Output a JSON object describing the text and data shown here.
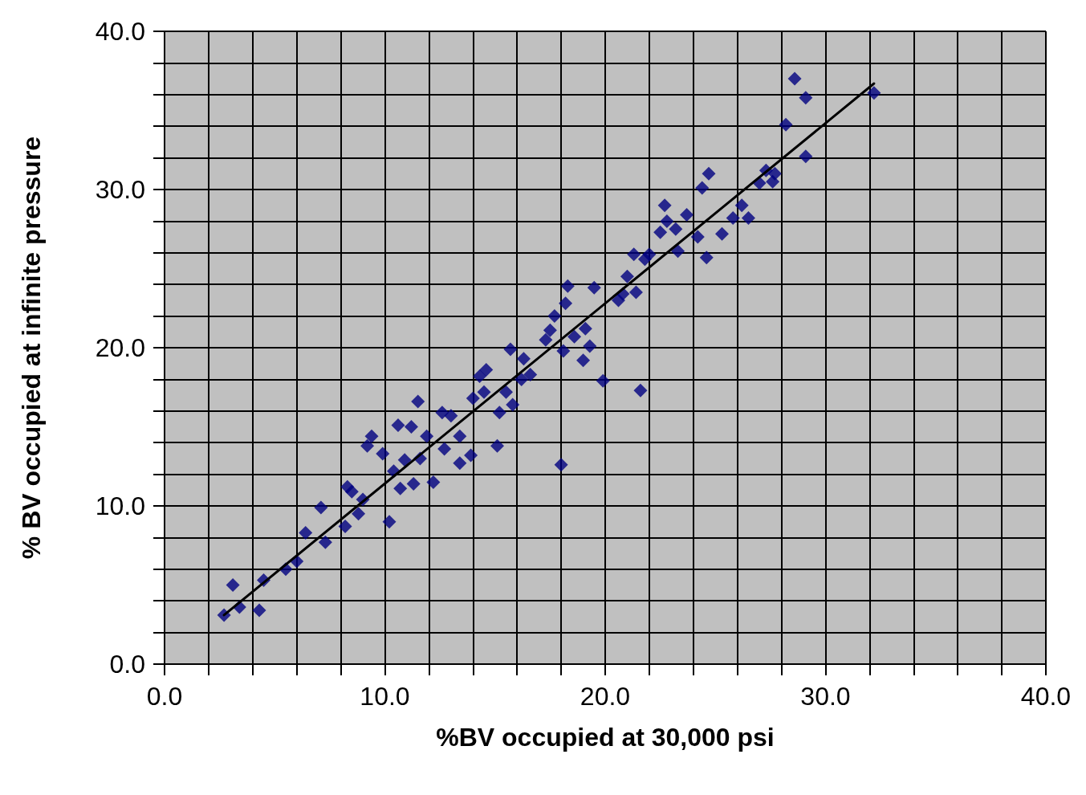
{
  "chart_data": {
    "type": "scatter",
    "xlabel": "%BV occupied at 30,000 psi",
    "ylabel": "% BV occupied at infinite pressure",
    "xlim": [
      0,
      40
    ],
    "ylim": [
      0,
      40
    ],
    "xticks": [
      {
        "value": 0,
        "label": "0.0"
      },
      {
        "value": 2,
        "label": null
      },
      {
        "value": 4,
        "label": null
      },
      {
        "value": 6,
        "label": null
      },
      {
        "value": 8,
        "label": null
      },
      {
        "value": 10,
        "label": "10.0"
      },
      {
        "value": 12,
        "label": null
      },
      {
        "value": 14,
        "label": null
      },
      {
        "value": 16,
        "label": null
      },
      {
        "value": 18,
        "label": null
      },
      {
        "value": 20,
        "label": "20.0"
      },
      {
        "value": 22,
        "label": null
      },
      {
        "value": 24,
        "label": null
      },
      {
        "value": 26,
        "label": null
      },
      {
        "value": 28,
        "label": null
      },
      {
        "value": 30,
        "label": "30.0"
      },
      {
        "value": 32,
        "label": null
      },
      {
        "value": 34,
        "label": null
      },
      {
        "value": 36,
        "label": null
      },
      {
        "value": 38,
        "label": null
      },
      {
        "value": 40,
        "label": "40.0"
      }
    ],
    "yticks": [
      {
        "value": 0,
        "label": "0.0"
      },
      {
        "value": 2,
        "label": null
      },
      {
        "value": 4,
        "label": null
      },
      {
        "value": 6,
        "label": null
      },
      {
        "value": 8,
        "label": null
      },
      {
        "value": 10,
        "label": "10.0"
      },
      {
        "value": 12,
        "label": null
      },
      {
        "value": 14,
        "label": null
      },
      {
        "value": 16,
        "label": null
      },
      {
        "value": 18,
        "label": null
      },
      {
        "value": 20,
        "label": "20.0"
      },
      {
        "value": 22,
        "label": null
      },
      {
        "value": 24,
        "label": null
      },
      {
        "value": 26,
        "label": null
      },
      {
        "value": 28,
        "label": null
      },
      {
        "value": 30,
        "label": "30.0"
      },
      {
        "value": 32,
        "label": null
      },
      {
        "value": 34,
        "label": null
      },
      {
        "value": 36,
        "label": null
      },
      {
        "value": 38,
        "label": null
      },
      {
        "value": 40,
        "label": "40.0"
      }
    ],
    "grid": true,
    "marker": "diamond",
    "series": [
      {
        "color": "#000080",
        "x": [
          2.7,
          3.1,
          3.4,
          4.3,
          4.5,
          5.5,
          6.0,
          6.4,
          7.1,
          7.3,
          8.2,
          8.3,
          8.5,
          8.8,
          9.0,
          9.2,
          9.4,
          9.9,
          10.2,
          10.4,
          10.6,
          10.7,
          10.9,
          11.2,
          11.3,
          11.5,
          11.6,
          11.9,
          12.2,
          12.6,
          12.7,
          13.0,
          13.4,
          13.4,
          13.9,
          14.0,
          14.3,
          14.5,
          14.6,
          15.1,
          15.2,
          15.5,
          15.7,
          15.8,
          16.2,
          16.3,
          16.6,
          17.3,
          17.5,
          17.7,
          18.0,
          18.1,
          18.2,
          18.3,
          18.6,
          19.0,
          19.1,
          19.3,
          19.5,
          19.9,
          20.6,
          20.8,
          21.0,
          21.3,
          21.4,
          21.6,
          21.8,
          22.0,
          22.5,
          22.7,
          22.8,
          23.2,
          23.3,
          23.7,
          24.2,
          24.4,
          24.6,
          24.7,
          25.3,
          25.8,
          26.2,
          26.5,
          27.0,
          27.3,
          27.6,
          27.7,
          28.2,
          28.6,
          29.1,
          29.1,
          32.2
        ],
        "values": [
          3.1,
          5.0,
          3.6,
          3.4,
          5.3,
          6.0,
          6.5,
          8.3,
          9.9,
          7.7,
          8.7,
          11.2,
          10.9,
          9.5,
          10.4,
          13.8,
          14.4,
          13.3,
          9.0,
          12.2,
          15.1,
          11.1,
          12.9,
          15.0,
          11.4,
          16.6,
          13.0,
          14.4,
          11.5,
          15.9,
          13.6,
          15.7,
          12.7,
          14.4,
          13.2,
          16.8,
          18.2,
          17.2,
          18.6,
          13.8,
          15.9,
          17.2,
          19.9,
          16.4,
          18.0,
          19.3,
          18.3,
          20.5,
          21.1,
          22.0,
          12.6,
          19.8,
          22.8,
          23.9,
          20.7,
          19.2,
          21.2,
          20.1,
          23.8,
          17.9,
          23.0,
          23.4,
          24.5,
          25.9,
          23.5,
          17.3,
          25.6,
          25.9,
          27.3,
          29.0,
          28.0,
          27.5,
          26.1,
          28.4,
          27.0,
          30.1,
          25.7,
          31.0,
          27.2,
          28.2,
          29.0,
          28.2,
          30.4,
          31.2,
          30.5,
          31.0,
          34.1,
          37.0,
          32.1,
          35.8,
          36.1
        ]
      },
      {
        "type": "line",
        "color": "#000000",
        "marker": "none",
        "line_style": "solid",
        "x": [
          2.7,
          32.2
        ],
        "values": [
          3.1,
          36.7
        ]
      }
    ]
  }
}
